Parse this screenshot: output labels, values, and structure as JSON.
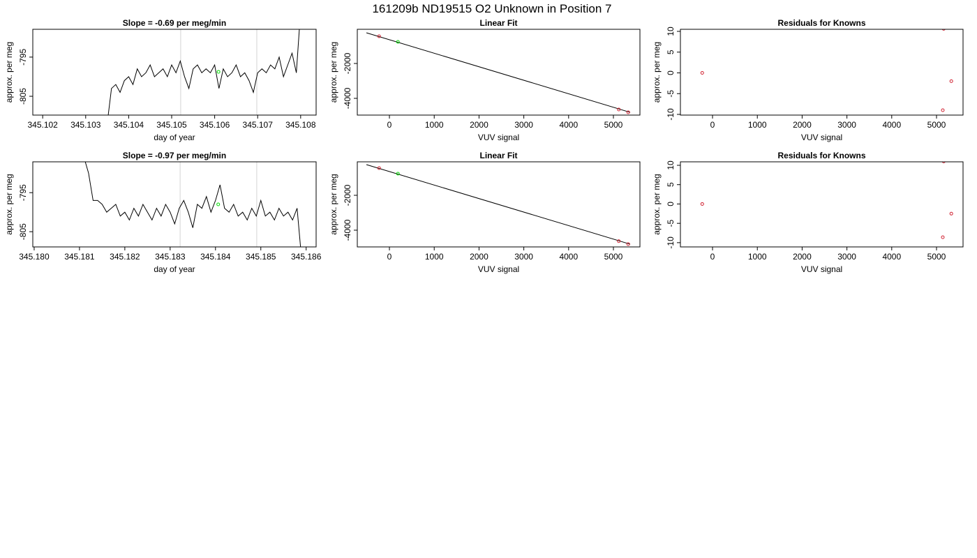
{
  "title": "161209b     ND19515   O2 Unknown in Position  7",
  "chart_data": [
    {
      "type": "line",
      "title": "Slope =  -0.69  per meg/min",
      "xlabel": "day of year",
      "ylabel": "approx. per meg",
      "xlim": [
        345.10177,
        345.10836
      ],
      "ylim": [
        -809.8,
        -787.9
      ],
      "xticks": [
        345.102,
        345.103,
        345.104,
        345.105,
        345.106,
        345.107,
        345.108
      ],
      "yticks": [
        -795,
        -805
      ],
      "vlines": [
        345.10521,
        345.10698
      ],
      "vline_color": "#d3d3d3",
      "series": [
        {
          "style": "line",
          "color": "#000000",
          "x": [
            345.1035,
            345.1036,
            345.1037,
            345.1038,
            345.1039,
            345.104,
            345.1041,
            345.1042,
            345.1043,
            345.1044,
            345.1045,
            345.1046,
            345.1047,
            345.1048,
            345.1049,
            345.105,
            345.1051,
            345.1052,
            345.1053,
            345.1054,
            345.1055,
            345.1056,
            345.1057,
            345.1058,
            345.1059,
            345.106,
            345.1061,
            345.1062,
            345.1063,
            345.1064,
            345.1065,
            345.1066,
            345.1067,
            345.1068,
            345.1069,
            345.107,
            345.1071,
            345.1072,
            345.1073,
            345.1074,
            345.1075,
            345.1076,
            345.1077,
            345.1078,
            345.1079,
            345.108
          ],
          "values": [
            -812,
            -803,
            -802,
            -804,
            -801,
            -800,
            -802,
            -798,
            -800,
            -799,
            -797,
            -800,
            -799,
            -798,
            -800,
            -797,
            -799,
            -796,
            -800,
            -803,
            -798,
            -797,
            -799,
            -798,
            -799,
            -797,
            -803,
            -798,
            -800,
            -799,
            -797,
            -800,
            -799,
            -801,
            -804,
            -799,
            -798,
            -799,
            -797,
            -798,
            -795,
            -800,
            -797,
            -794,
            -799,
            -783
          ]
        },
        {
          "style": "point",
          "color": "#00dd00",
          "x": [
            345.10609
          ],
          "values": [
            -798.75
          ]
        }
      ]
    },
    {
      "type": "scatter",
      "title": "Linear Fit",
      "xlabel": "VUV signal",
      "ylabel": "approx. per meg",
      "xlim": [
        -717,
        5592
      ],
      "ylim": [
        -4960,
        -40
      ],
      "xticks": [
        0,
        1000,
        2000,
        3000,
        4000,
        5000
      ],
      "yticks": [
        -2000,
        -4000
      ],
      "series": [
        {
          "style": "line",
          "color": "#000000",
          "x": [
            -514,
            5374
          ],
          "values": [
            -240,
            -4803
          ]
        },
        {
          "style": "point",
          "color": "#d02030",
          "x": [
            -230,
            5120,
            5330
          ],
          "values": [
            -440,
            -4640,
            -4800
          ]
        },
        {
          "style": "point",
          "color": "#00dd00",
          "x": [
            190
          ],
          "values": [
            -760
          ]
        }
      ]
    },
    {
      "type": "scatter",
      "title": "Residuals for Knowns",
      "xlabel": "VUV signal",
      "ylabel": "approx. per meg",
      "xlim": [
        -717,
        5592
      ],
      "ylim": [
        -10.17,
        10.5
      ],
      "xticks": [
        0,
        1000,
        2000,
        3000,
        4000,
        5000
      ],
      "yticks": [
        10,
        5,
        0,
        -5,
        -10
      ],
      "series": [
        {
          "style": "point",
          "color": "#d02030",
          "x": [
            -230,
            5330,
            5140,
            5160
          ],
          "values": [
            0,
            -2,
            -9,
            10.6
          ]
        }
      ]
    },
    {
      "type": "line",
      "title": "Slope =  -0.97  per meg/min",
      "xlabel": "day of year",
      "ylabel": "approx. per meg",
      "xlim": [
        345.17997,
        345.18622
      ],
      "ylim": [
        -808.9,
        -787.1
      ],
      "xticks": [
        {
          "value": 345.18,
          "label": "345.180"
        },
        345.181,
        345.182,
        345.183,
        345.184,
        345.185,
        345.186
      ],
      "yticks": [
        -795,
        -805
      ],
      "vlines": [
        345.18322,
        345.18491
      ],
      "vline_color": "#d3d3d3",
      "series": [
        {
          "style": "line",
          "color": "#000000",
          "x": [
            345.1811,
            345.1812,
            345.1813,
            345.1814,
            345.1815,
            345.1816,
            345.1817,
            345.1818,
            345.1819,
            345.182,
            345.1821,
            345.1822,
            345.1823,
            345.1824,
            345.1825,
            345.1826,
            345.1827,
            345.1828,
            345.1829,
            345.183,
            345.1831,
            345.1832,
            345.1833,
            345.1834,
            345.1835,
            345.1836,
            345.1837,
            345.1838,
            345.1839,
            345.184,
            345.1841,
            345.1842,
            345.1843,
            345.1844,
            345.1845,
            345.1846,
            345.1847,
            345.1848,
            345.1849,
            345.185,
            345.1851,
            345.1852,
            345.1853,
            345.1854,
            345.1855,
            345.1856,
            345.1857,
            345.1858,
            345.1859
          ],
          "values": [
            -786,
            -790,
            -797,
            -797,
            -798,
            -800,
            -799,
            -798,
            -801,
            -800,
            -802,
            -799,
            -801,
            -798,
            -800,
            -802,
            -799,
            -801,
            -798,
            -800,
            -803,
            -799,
            -797,
            -800,
            -804,
            -798,
            -799,
            -796,
            -800,
            -797,
            -793,
            -799,
            -800,
            -798,
            -801,
            -800,
            -802,
            -799,
            -801,
            -797,
            -801,
            -800,
            -802,
            -799,
            -801,
            -800,
            -802,
            -799,
            -812
          ]
        },
        {
          "style": "point",
          "color": "#00dd00",
          "x": [
            345.18406
          ],
          "values": [
            -798
          ]
        }
      ]
    },
    {
      "type": "scatter",
      "title": "Linear Fit",
      "xlabel": "VUV signal",
      "ylabel": "approx. per meg",
      "xlim": [
        -717,
        5592
      ],
      "ylim": [
        -4960,
        -80
      ],
      "xticks": [
        0,
        1000,
        2000,
        3000,
        4000,
        5000
      ],
      "yticks": [
        -2000,
        -4000
      ],
      "series": [
        {
          "style": "line",
          "color": "#000000",
          "x": [
            -514,
            5374
          ],
          "values": [
            -240,
            -4803
          ]
        },
        {
          "style": "point",
          "color": "#d02030",
          "x": [
            -230,
            5120,
            5330
          ],
          "values": [
            -440,
            -4630,
            -4800
          ]
        },
        {
          "style": "point",
          "color": "#00dd00",
          "x": [
            190
          ],
          "values": [
            -760
          ]
        }
      ]
    },
    {
      "type": "scatter",
      "title": "Residuals for Knowns",
      "xlabel": "VUV signal",
      "ylabel": "approx. per meg",
      "xlim": [
        -717,
        5592
      ],
      "ylim": [
        -11.1,
        10.9
      ],
      "xticks": [
        0,
        1000,
        2000,
        3000,
        4000,
        5000
      ],
      "yticks": [
        10,
        5,
        0,
        -5,
        -10
      ],
      "series": [
        {
          "style": "point",
          "color": "#d02030",
          "x": [
            -230,
            5330,
            5140,
            5160
          ],
          "values": [
            0,
            -2.5,
            -8.6,
            11
          ]
        }
      ]
    }
  ]
}
